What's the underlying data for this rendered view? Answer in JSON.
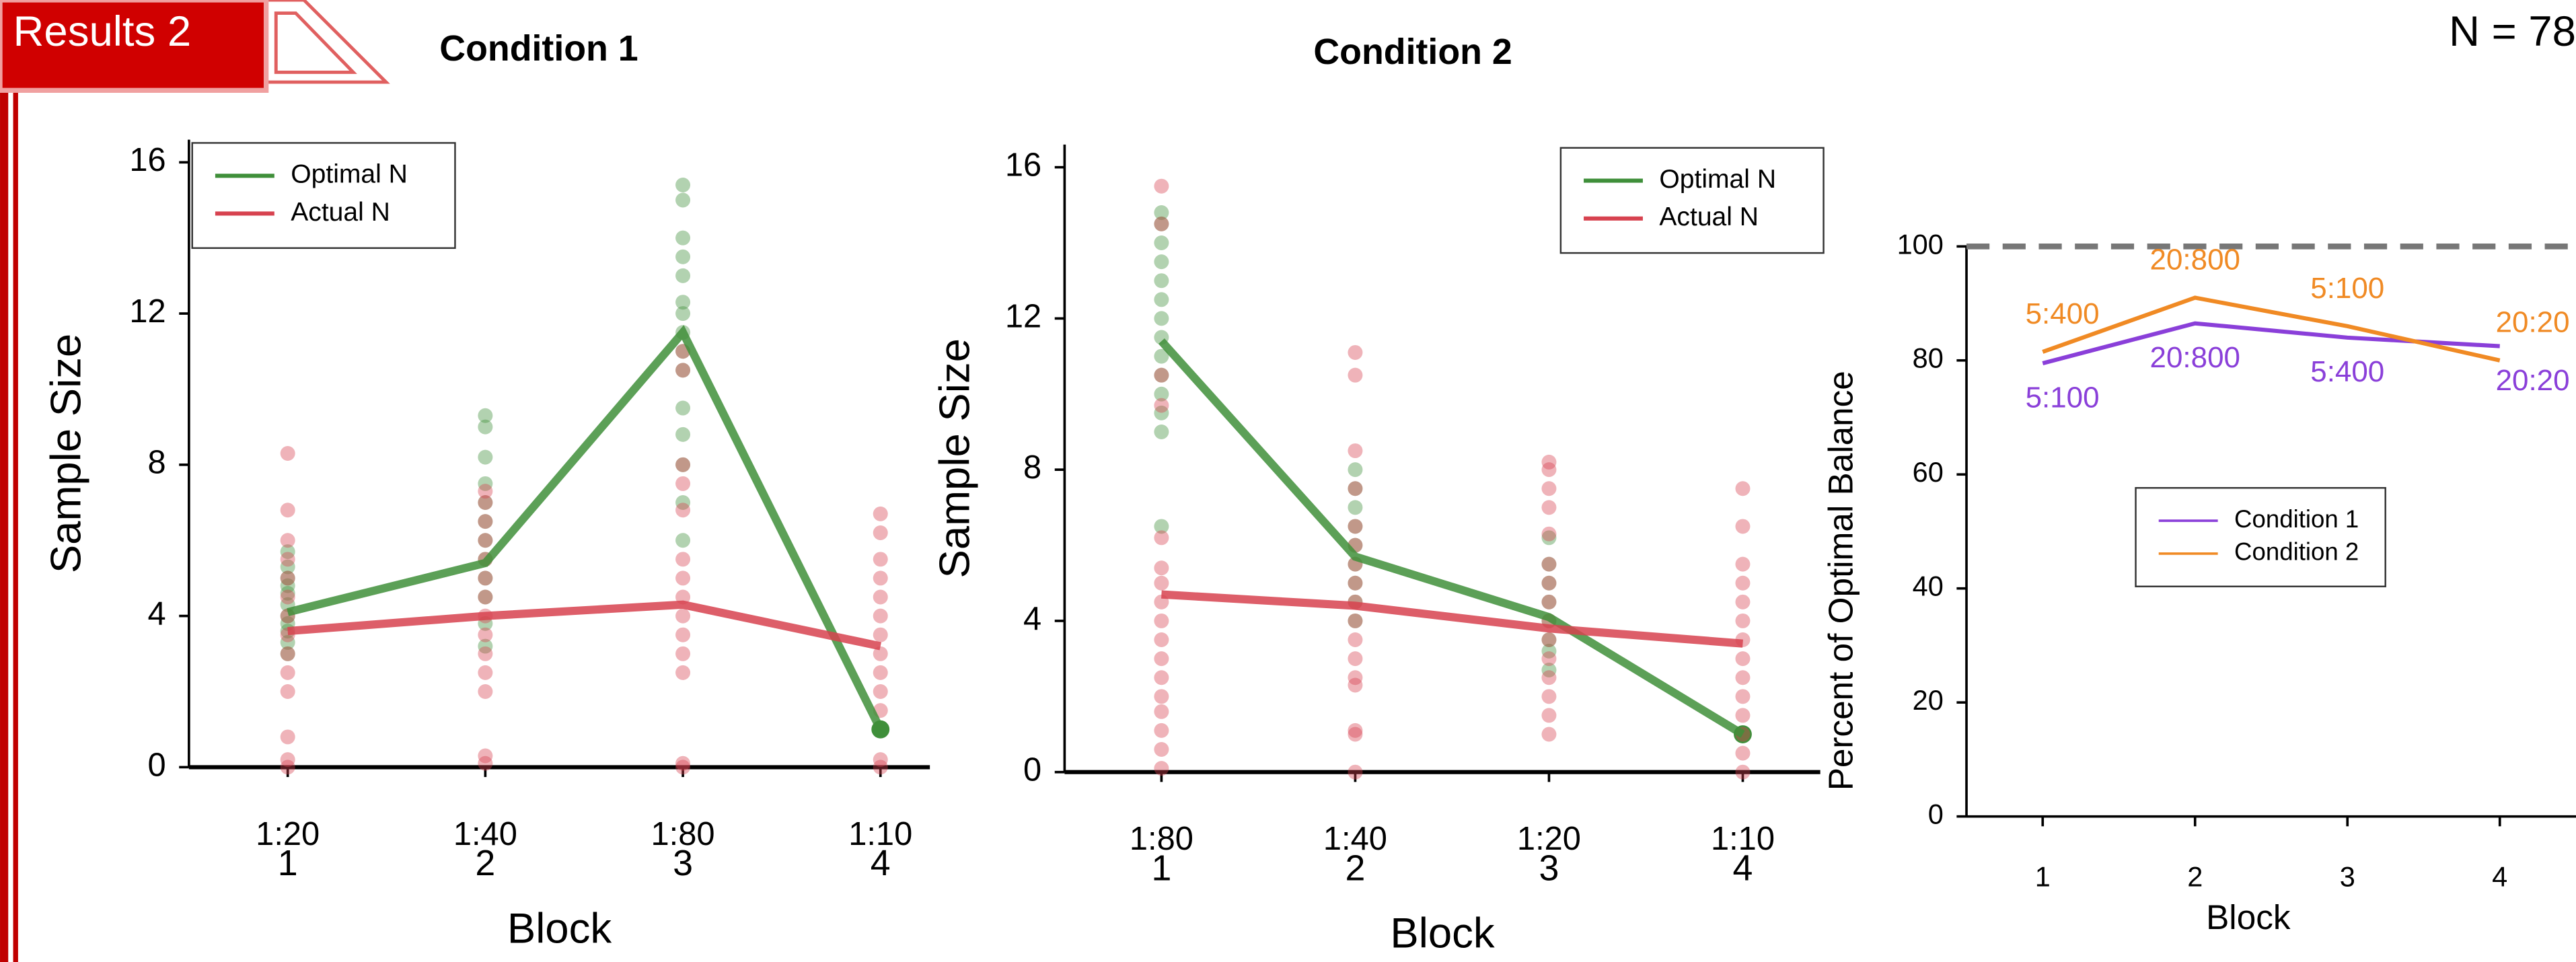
{
  "slide": {
    "tab": "Results 2",
    "note": "N = 78"
  },
  "chart_data": [
    {
      "type": "line",
      "title": "Condition 1",
      "x_label": "Block",
      "y_label": "Sample Size",
      "x": [
        1,
        2,
        3,
        4
      ],
      "categories": [
        "1:20",
        "1:40",
        "1:80",
        "1:10"
      ],
      "xlim": [
        0.5,
        4.25
      ],
      "ylim": [
        0,
        16.6
      ],
      "yticks": [
        0,
        4,
        8,
        12,
        16
      ],
      "legend": "upper left",
      "series": [
        {
          "name": "Optimal N",
          "color": "#3f8f3a",
          "values": [
            4.1,
            5.4,
            11.5,
            1
          ],
          "points": [
            [
              3,
              3.3,
              3.6,
              3.8,
              4,
              4.3,
              4.6,
              4.8,
              5,
              5.3,
              5.7
            ],
            [
              3.2,
              3.8,
              4.5,
              5,
              5.5,
              6,
              6.5,
              7,
              7.5,
              8.2,
              9,
              9.3
            ],
            [
              6,
              7,
              8,
              8.8,
              9.5,
              10.5,
              11,
              11.5,
              12,
              12.3,
              13,
              13.5,
              14,
              15,
              15.4
            ],
            [
              1
            ]
          ]
        },
        {
          "name": "Actual N",
          "color": "#d7424f",
          "values": [
            3.6,
            4.0,
            4.3,
            3.2
          ],
          "points": [
            [
              0,
              0.2,
              0.8,
              2,
              2.5,
              3,
              3.5,
              4,
              4.5,
              5,
              5.5,
              6,
              6.8,
              8.3
            ],
            [
              0.1,
              0.3,
              2,
              2.5,
              3,
              3.5,
              4,
              4.5,
              5,
              5.5,
              6,
              6.5,
              7,
              7.3
            ],
            [
              0,
              0.1,
              2.5,
              3,
              3.5,
              4,
              4.5,
              5,
              5.5,
              6.8,
              7.5,
              8,
              10.5,
              11
            ],
            [
              0,
              0.2,
              1.5,
              2,
              2.5,
              3,
              3.5,
              4,
              4.5,
              5,
              5.5,
              6.2,
              6.7
            ]
          ]
        }
      ]
    },
    {
      "type": "line",
      "title": "Condition 2",
      "x_label": "Block",
      "y_label": "Sample Size",
      "x": [
        1,
        2,
        3,
        4
      ],
      "categories": [
        "1:80",
        "1:40",
        "1:20",
        "1:10"
      ],
      "xlim": [
        0.5,
        4.4
      ],
      "ylim": [
        0,
        16.6
      ],
      "yticks": [
        0,
        4,
        8,
        12,
        16
      ],
      "legend": "upper right",
      "series": [
        {
          "name": "Optimal N",
          "color": "#3f8f3a",
          "values": [
            11.4,
            5.7,
            4.1,
            1
          ],
          "points": [
            [
              6.5,
              9,
              9.5,
              10,
              10.5,
              11,
              11.5,
              12,
              12.5,
              13,
              13.5,
              14,
              14.5,
              14.8
            ],
            [
              4,
              4.5,
              5,
              5.5,
              6,
              6.5,
              7,
              7.5,
              8
            ],
            [
              2.7,
              3.2,
              3.5,
              4,
              4.5,
              5,
              5.5,
              6.2
            ],
            [
              1
            ]
          ]
        },
        {
          "name": "Actual N",
          "color": "#d7424f",
          "values": [
            4.7,
            4.4,
            3.8,
            3.4
          ],
          "points": [
            [
              0.1,
              0.6,
              1.1,
              1.6,
              2,
              2.5,
              3,
              3.5,
              4,
              4.5,
              5,
              5.4,
              6.2,
              9.7,
              10.5,
              14.5,
              15.5
            ],
            [
              0,
              1,
              1.1,
              2.3,
              2.5,
              3,
              3.5,
              4,
              4.5,
              5,
              5.5,
              6,
              6.5,
              7.5,
              8.5,
              10.5,
              11.1
            ],
            [
              1,
              1.5,
              2,
              2.5,
              3,
              3.5,
              4,
              4.5,
              5,
              5.5,
              6.3,
              7,
              7.5,
              8,
              8.2
            ],
            [
              0,
              0.5,
              1,
              1.5,
              2,
              2.5,
              3,
              3.5,
              4,
              4.5,
              5,
              5.5,
              6.5,
              7.5
            ]
          ]
        }
      ]
    },
    {
      "type": "line",
      "x_label": "Block",
      "y_label": "Percent of Optimal Balance",
      "x": [
        1,
        2,
        3,
        4
      ],
      "xlim": [
        0.5,
        4.5
      ],
      "ylim": [
        0,
        100
      ],
      "yticks": [
        0,
        20,
        40,
        60,
        80,
        100
      ],
      "reference_line": 100,
      "legend": "center",
      "series": [
        {
          "name": "Condition 1",
          "color": "#8a3fd9",
          "values": [
            79.5,
            86.5,
            84,
            82.5
          ],
          "point_labels": [
            "5:100",
            "20:800",
            "5:400",
            "20:20"
          ]
        },
        {
          "name": "Condition 2",
          "color": "#f08a24",
          "values": [
            81.5,
            91,
            86,
            80
          ],
          "point_labels": [
            "5:400",
            "20:800",
            "5:100",
            "20:20"
          ]
        }
      ]
    }
  ]
}
